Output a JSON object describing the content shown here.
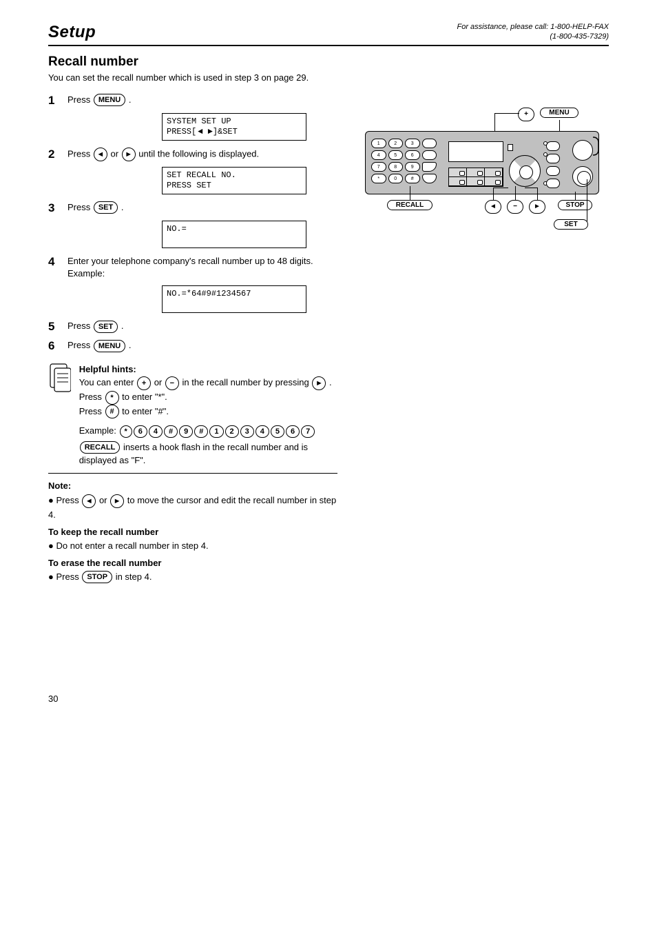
{
  "header": {
    "left": "Setup",
    "right_line1": "For assistance, please call: 1-800-HELP-FAX",
    "right_line2": "(1-800-435-7329)"
  },
  "section": {
    "title": "Recall number",
    "sub": "You can set the recall number which is used in step 3 on page 29."
  },
  "steps": {
    "s1": {
      "num": "1",
      "text_a": "Press ",
      "key": "MENU",
      "text_b": "."
    },
    "s2": {
      "num": "2",
      "text_a": "Press ",
      "key1_icon": "◄",
      "text_mid": " or ",
      "key2_icon": "►",
      "text_b": " until the following is displayed."
    },
    "s3": {
      "num": "3",
      "text_a": "Press ",
      "key": "SET",
      "text_b": "."
    },
    "s4": {
      "num": "4",
      "line1": "Enter your telephone company's recall number up to 48 digits.",
      "example_label": "Example:"
    },
    "s5": {
      "num": "5",
      "text_a": "Press ",
      "key": "SET",
      "text_b": "."
    },
    "s6": {
      "num": "6",
      "text_a": "Press ",
      "key": "MENU",
      "text_b": "."
    }
  },
  "displays": {
    "d1": {
      "l1": "SYSTEM SET UP",
      "l2_a": "PRESS[",
      "l2_b": "◄ ►",
      "l2_c": "]&SET"
    },
    "d2": {
      "l1": "SET RECALL NO.",
      "l2": "PRESS SET"
    },
    "d3": {
      "l1": "NO.=",
      "l2": ""
    },
    "d4": {
      "l1": "NO.=*64#9#1234567",
      "l2": ""
    }
  },
  "hints": {
    "title": "Helpful hints:",
    "line1_a": "You can enter ",
    "line1_mid": " or ",
    "line1_b": " in the recall number by pressing",
    "line1_c": ".",
    "line2_a": "Press ",
    "line2_b": " to enter \"*\".",
    "line3_a": "Press ",
    "line3_b": " to enter \"#\".",
    "example_label": "Example: ",
    "example_keys": [
      "*",
      "6",
      "4",
      "#",
      "9",
      "#",
      "1",
      "2",
      "3",
      "4",
      "5",
      "6",
      "7"
    ],
    "recall_a": "",
    "recall_key": "RECALL",
    "recall_b": " inserts a hook flash in the recall number and is displayed as \"F\"."
  },
  "notes": {
    "note_title": "Note:",
    "n1_a": "Press ",
    "n1_lkey": "◄",
    "n1_mid": " or ",
    "n1_rkey": "►",
    "n1_b": " to move the cursor and edit the recall number in step 4.",
    "n2_label": "To keep the recall number",
    "n2_body": "Do not enter a recall number in step 4.",
    "n3_label": "To erase the recall number",
    "n3_a": "Press ",
    "n3_key": "STOP",
    "n3_b": " in step 4."
  },
  "device_labels": {
    "menu": "MENU",
    "set": "SET",
    "stop": "STOP",
    "recall": "RECALL",
    "plus": "+",
    "minus": "−",
    "left": "◄",
    "right": "►"
  },
  "page": {
    "num": "30"
  },
  "colors": {
    "panel_bg": "#c0c0c0"
  }
}
